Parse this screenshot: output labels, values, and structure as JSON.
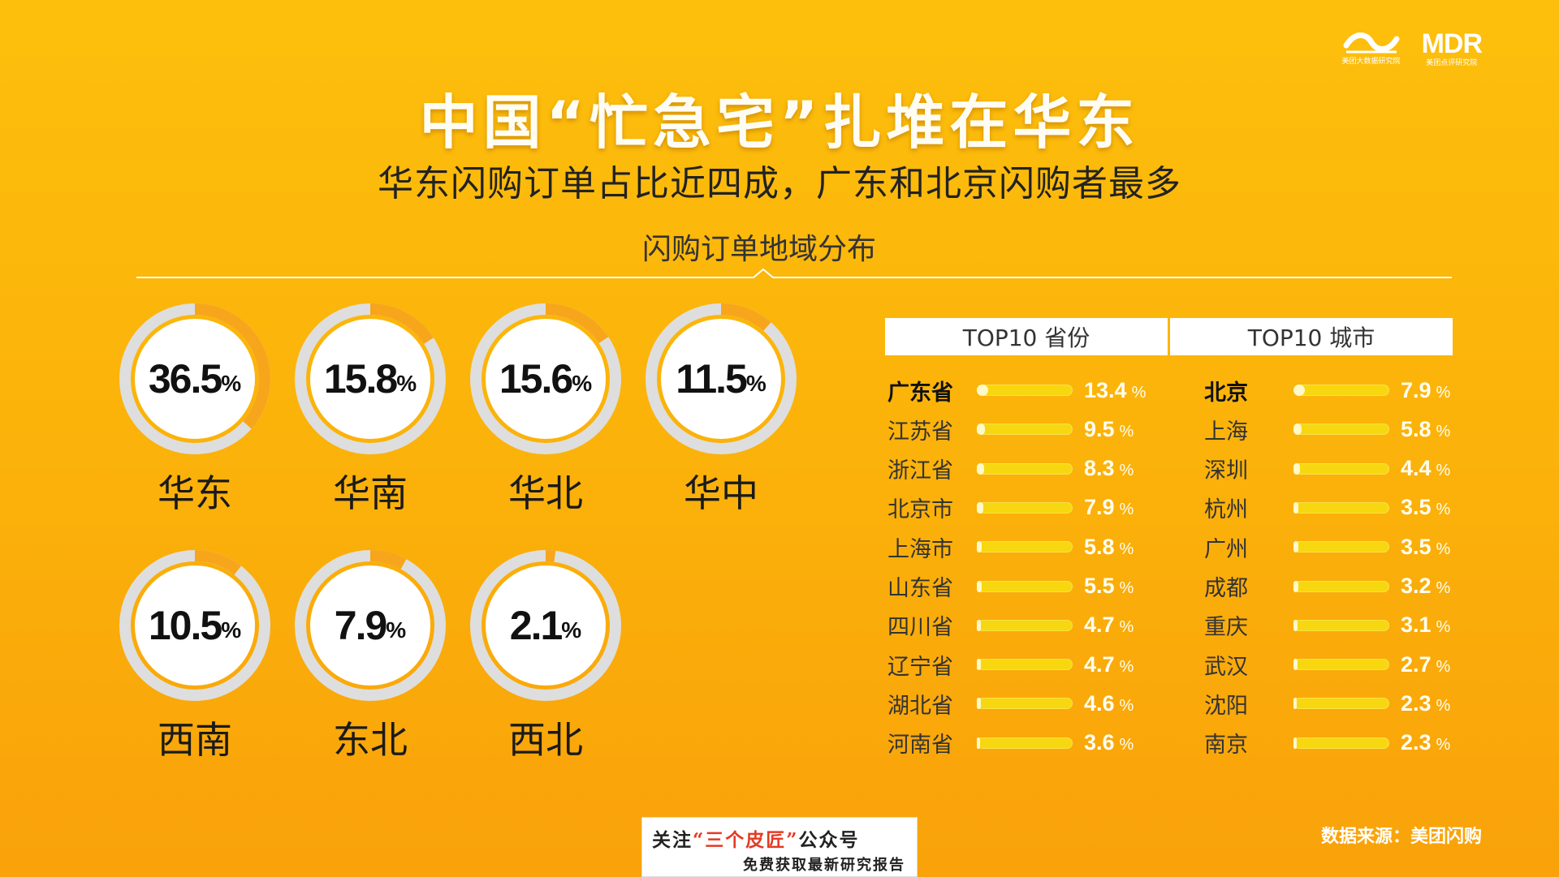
{
  "logos": [
    {
      "mark": "",
      "caption": "美团大数据研究院"
    },
    {
      "mark": "MDR",
      "caption": "美团点评研究院"
    }
  ],
  "title": "中国“忙急宅”扎堆在华东",
  "subtitle": "华东闪购订单占比近四成，广东和北京闪购者最多",
  "section_label": "闪购订单地域分布",
  "source": "数据来源：美团闪购",
  "watermark": {
    "line1_prefix": "关注",
    "line1_highlight": "“三个皮匠”",
    "line1_suffix": "公众号",
    "line2": "免费获取最新研究报告"
  },
  "colors": {
    "background": "#fbb10a",
    "ring_track": "#dedede",
    "ring_fill": "#f7a51b",
    "bar": "#f7d70f",
    "value_text": "#fffef0"
  },
  "chart_data": [
    {
      "type": "pie",
      "subtype": "donut-gauges",
      "unit": "%",
      "categories": [
        "华东",
        "华南",
        "华北",
        "华中",
        "西南",
        "东北",
        "西北"
      ],
      "values": [
        36.5,
        15.8,
        15.6,
        11.5,
        10.5,
        7.9,
        2.1
      ],
      "labels": [
        "36.5",
        "15.8",
        "15.6",
        "11.5",
        "10.5",
        "7.9",
        "2.1"
      ]
    },
    {
      "type": "bar",
      "orientation": "horizontal",
      "title": "TOP10 省份",
      "unit": "%",
      "categories": [
        "广东省",
        "江苏省",
        "浙江省",
        "北京市",
        "上海市",
        "山东省",
        "四川省",
        "辽宁省",
        "湖北省",
        "河南省"
      ],
      "values": [
        13.4,
        9.5,
        8.3,
        7.9,
        5.8,
        5.5,
        4.7,
        4.7,
        4.6,
        3.6
      ],
      "labels": [
        "13.4",
        "9.5",
        "8.3",
        "7.9",
        "5.8",
        "5.5",
        "4.7",
        "4.7",
        "4.6",
        "3.6"
      ]
    },
    {
      "type": "bar",
      "orientation": "horizontal",
      "title": "TOP10 城市",
      "unit": "%",
      "categories": [
        "北京",
        "上海",
        "深圳",
        "杭州",
        "广州",
        "成都",
        "重庆",
        "武汉",
        "沈阳",
        "南京"
      ],
      "values": [
        7.9,
        5.8,
        4.4,
        3.5,
        3.5,
        3.2,
        3.1,
        2.7,
        2.3,
        2.3
      ],
      "labels": [
        "7.9",
        "5.8",
        "4.4",
        "3.5",
        "3.5",
        "3.2",
        "3.1",
        "2.7",
        "2.3",
        "2.3"
      ]
    }
  ]
}
